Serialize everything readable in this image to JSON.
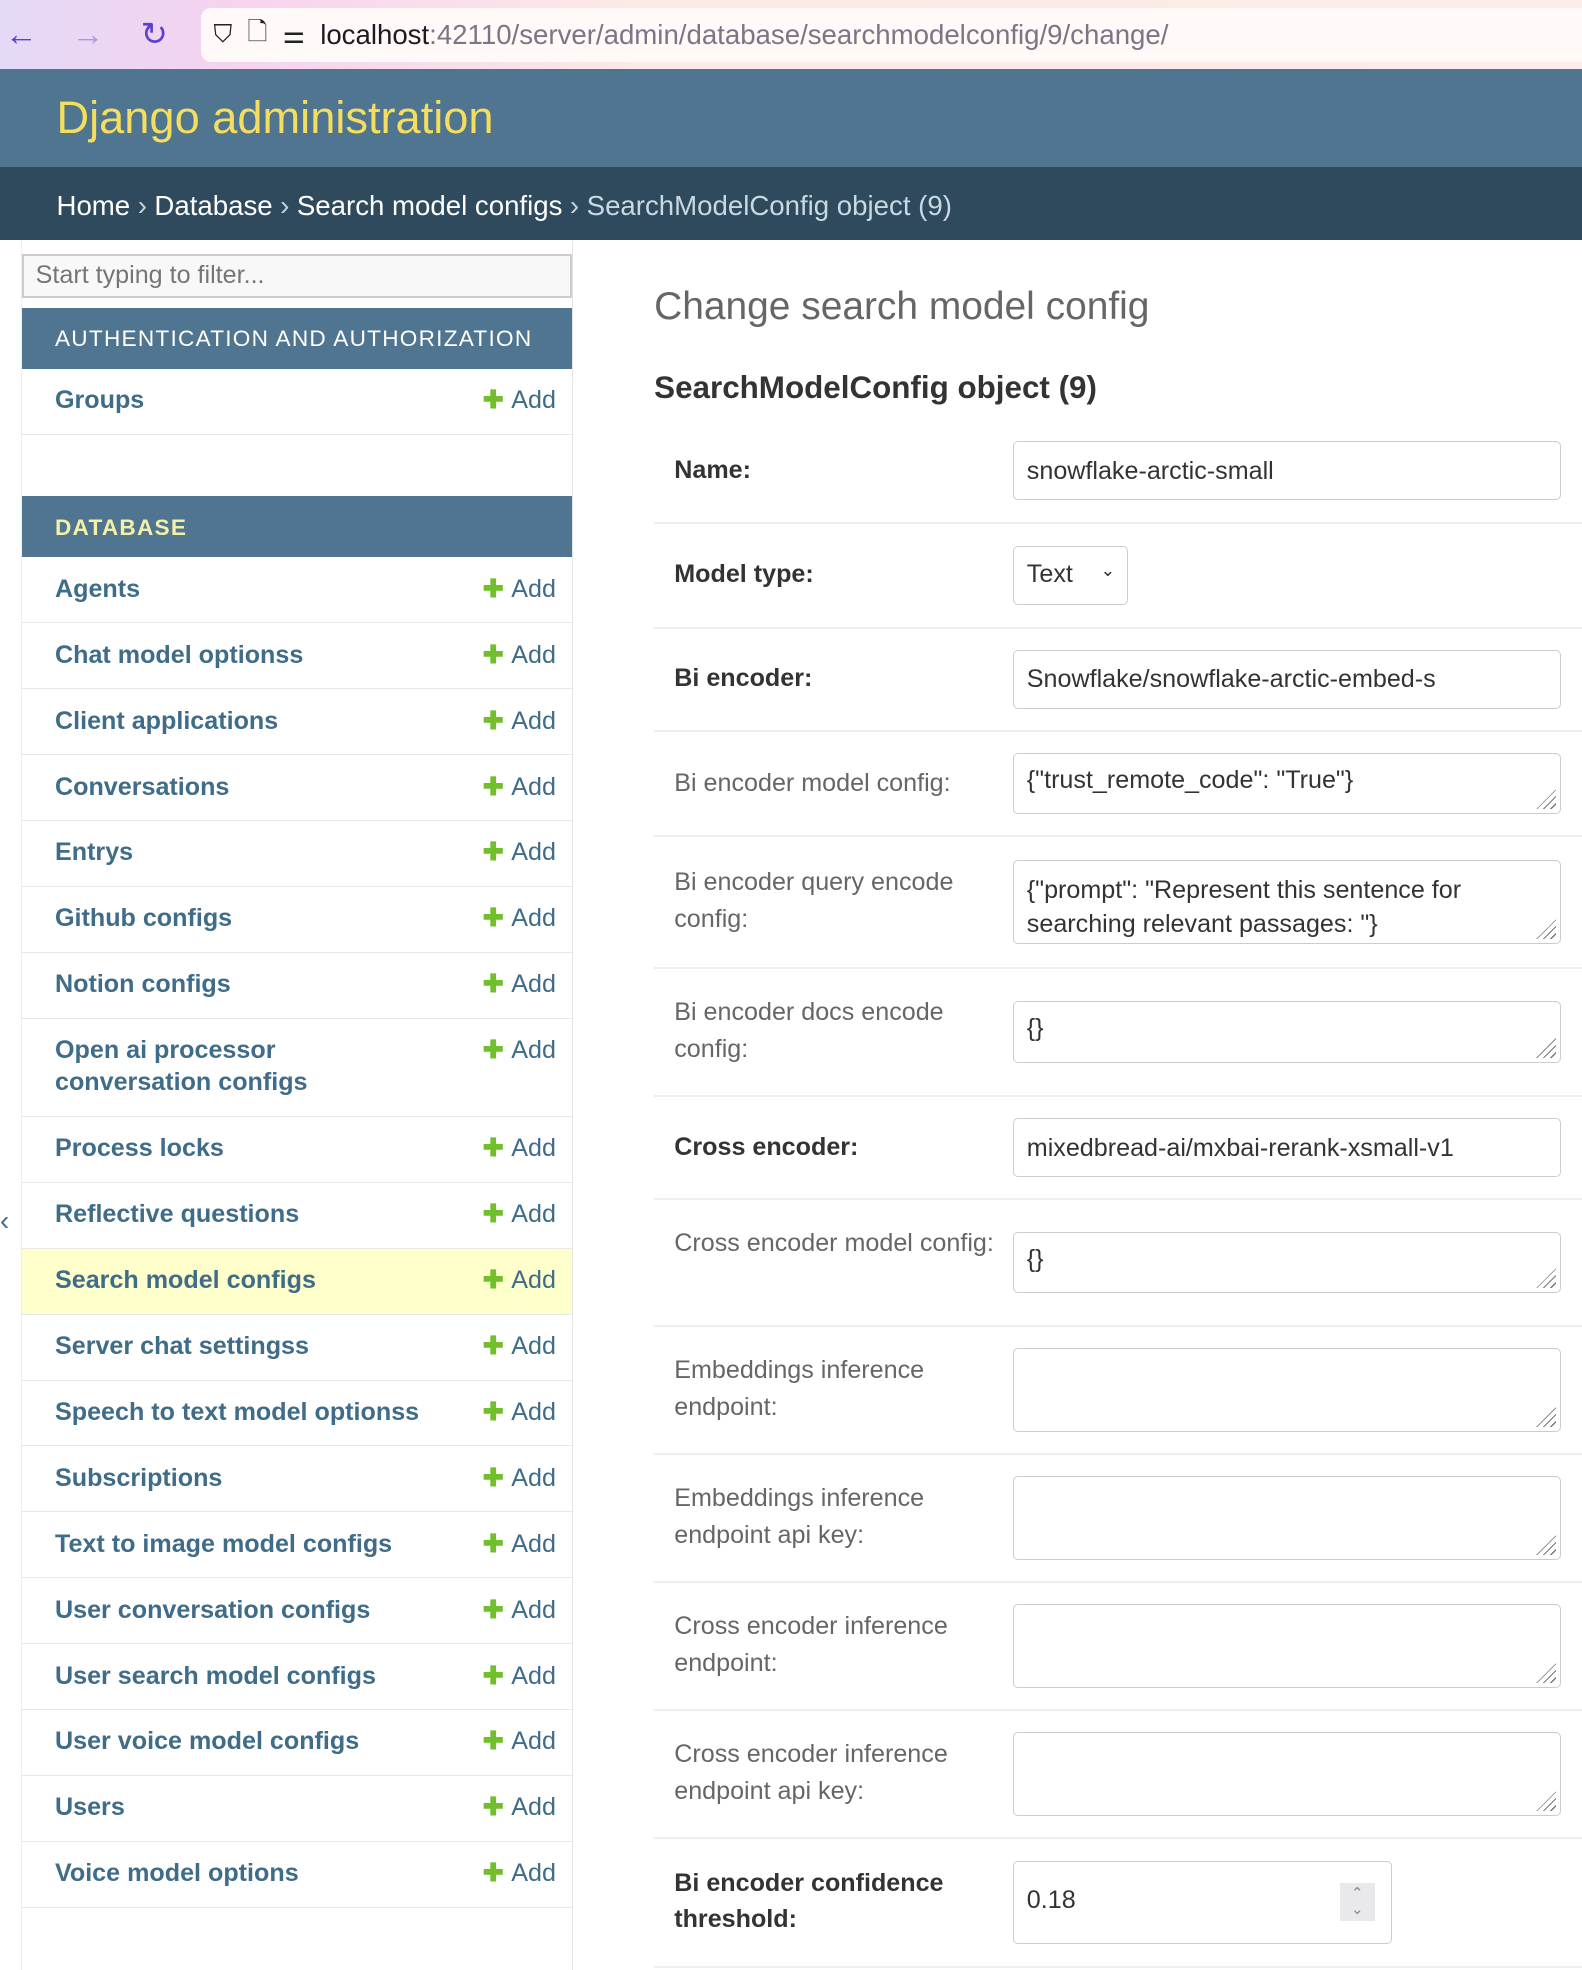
{
  "browser": {
    "url_host": "localhost",
    "url_path": ":42110/server/admin/database/searchmodelconfig/9/change/"
  },
  "header": {
    "site_title": "Django administration"
  },
  "breadcrumbs": [
    "Home",
    "Database",
    "Search model configs",
    "SearchModelConfig object (9)"
  ],
  "sidebar": {
    "filter_placeholder": "Start typing to filter...",
    "add_label": "Add",
    "sections": [
      {
        "title": "AUTHENTICATION AND AUTHORIZATION",
        "items": [
          "Groups"
        ]
      },
      {
        "title": "DATABASE",
        "items": [
          "Agents",
          "Chat model optionss",
          "Client applications",
          "Conversations",
          "Entrys",
          "Github configs",
          "Notion configs",
          "Open ai processor conversation configs",
          "Process locks",
          "Reflective questions",
          "Search model configs",
          "Server chat settingss",
          "Speech to text model optionss",
          "Subscriptions",
          "Text to image model configs",
          "User conversation configs",
          "User search model configs",
          "User voice model configs",
          "Users",
          "Voice model options"
        ]
      }
    ],
    "selected": "Search model configs",
    "collapse_icon": "‹"
  },
  "main": {
    "page_title": "Change search model config",
    "object_title": "SearchModelConfig object (9)",
    "fields": [
      {
        "label": "Name:",
        "required": true,
        "type": "text",
        "value": "snowflake-arctic-small"
      },
      {
        "label": "Model type:",
        "required": true,
        "type": "select",
        "value": "Text"
      },
      {
        "label": "Bi encoder:",
        "required": true,
        "type": "text",
        "value": "Snowflake/snowflake-arctic-embed-s"
      },
      {
        "label": "Bi encoder model config:",
        "required": false,
        "type": "textarea",
        "value": "{\"trust_remote_code\": \"True\"}"
      },
      {
        "label": "Bi encoder query encode config:",
        "required": false,
        "type": "textarea",
        "value": "{\"prompt\": \"Represent this sentence for searching relevant passages: \"}"
      },
      {
        "label": "Bi encoder docs encode config:",
        "required": false,
        "type": "textarea",
        "value": "{}"
      },
      {
        "label": "Cross encoder:",
        "required": true,
        "type": "text",
        "value": "mixedbread-ai/mxbai-rerank-xsmall-v1"
      },
      {
        "label": "Cross encoder model config:",
        "required": false,
        "type": "textarea",
        "value": "{}"
      },
      {
        "label": "Embeddings inference endpoint:",
        "required": false,
        "type": "textarea",
        "value": ""
      },
      {
        "label": "Embeddings inference endpoint api key:",
        "required": false,
        "type": "textarea",
        "value": ""
      },
      {
        "label": "Cross encoder inference endpoint:",
        "required": false,
        "type": "textarea",
        "value": ""
      },
      {
        "label": "Cross encoder inference endpoint api key:",
        "required": false,
        "type": "textarea",
        "value": ""
      },
      {
        "label": "Bi encoder confidence threshold:",
        "required": true,
        "type": "number",
        "value": "0.18"
      }
    ]
  }
}
